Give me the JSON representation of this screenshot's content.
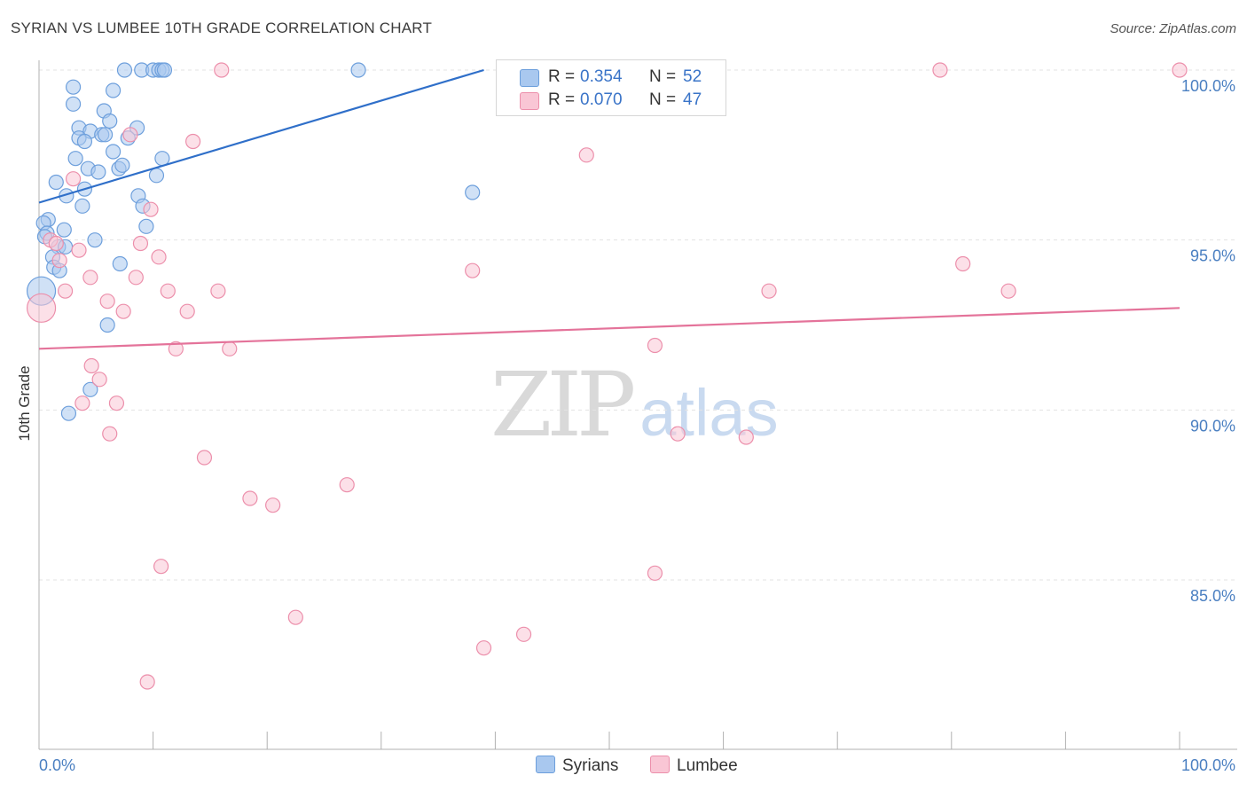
{
  "header": {
    "title": "SYRIAN VS LUMBEE 10TH GRADE CORRELATION CHART",
    "source": "Source: ZipAtlas.com"
  },
  "watermark": {
    "zip": "ZIP",
    "atlas": "atlas"
  },
  "legend": {
    "rows": [
      {
        "r_label": "R =",
        "r_value": "0.354",
        "n_label": "N =",
        "n_value": "52",
        "color": "#a9c8ef",
        "border": "#6d9fdc"
      },
      {
        "r_label": "R =",
        "r_value": "0.070",
        "n_label": "N =",
        "n_value": "47",
        "color": "#f9c6d5",
        "border": "#ec8fab"
      }
    ]
  },
  "bottom_legend": [
    {
      "label": "Syrians",
      "color": "#a9c8ef",
      "border": "#6d9fdc"
    },
    {
      "label": "Lumbee",
      "color": "#f9c6d5",
      "border": "#ec8fab"
    }
  ],
  "chart_data": {
    "type": "scatter",
    "title": "SYRIAN VS LUMBEE 10TH GRADE CORRELATION CHART",
    "xlabel": "",
    "ylabel": "10th Grade",
    "xlim": [
      0,
      100
    ],
    "ylim": [
      80.5,
      100.7
    ],
    "x_tick_labels": [
      "0.0%",
      "100.0%"
    ],
    "y_ticks": [
      85,
      90,
      95,
      100
    ],
    "y_tick_labels": [
      "85.0%",
      "90.0%",
      "95.0%",
      "100.0%"
    ],
    "grid": true,
    "legend_position": "top-center",
    "series": [
      {
        "name": "Syrians",
        "color": "#6d9fdc",
        "fill": "#a9c8ef",
        "trend": {
          "x": [
            0,
            39
          ],
          "y": [
            96.1,
            100
          ],
          "color": "#2f6fc9"
        },
        "points": [
          [
            7.5,
            100
          ],
          [
            9,
            100
          ],
          [
            10,
            100
          ],
          [
            10.5,
            100
          ],
          [
            10.8,
            100
          ],
          [
            11,
            100
          ],
          [
            28,
            100
          ],
          [
            3,
            99.5
          ],
          [
            6.5,
            99.4
          ],
          [
            3,
            99
          ],
          [
            5.7,
            98.8
          ],
          [
            6.2,
            98.5
          ],
          [
            3.5,
            98.3
          ],
          [
            8.6,
            98.3
          ],
          [
            4.5,
            98.2
          ],
          [
            5.5,
            98.1
          ],
          [
            5.8,
            98.1
          ],
          [
            3.5,
            98
          ],
          [
            4,
            97.9
          ],
          [
            7.8,
            98
          ],
          [
            6.5,
            97.6
          ],
          [
            3.2,
            97.4
          ],
          [
            10.8,
            97.4
          ],
          [
            4.3,
            97.1
          ],
          [
            7,
            97.1
          ],
          [
            7.3,
            97.2
          ],
          [
            5.2,
            97
          ],
          [
            10.3,
            96.9
          ],
          [
            1.5,
            96.7
          ],
          [
            4,
            96.5
          ],
          [
            2.4,
            96.3
          ],
          [
            8.7,
            96.3
          ],
          [
            38,
            96.4
          ],
          [
            3.8,
            96
          ],
          [
            9.1,
            96
          ],
          [
            0.8,
            95.6
          ],
          [
            0.4,
            95.5
          ],
          [
            2.2,
            95.3
          ],
          [
            0.7,
            95.2
          ],
          [
            0.5,
            95.1
          ],
          [
            9.4,
            95.4
          ],
          [
            4.9,
            95
          ],
          [
            1.7,
            94.8
          ],
          [
            2.3,
            94.8
          ],
          [
            1.2,
            94.5
          ],
          [
            7.1,
            94.3
          ],
          [
            1.3,
            94.2
          ],
          [
            1.8,
            94.1
          ],
          [
            0.2,
            93.5
          ],
          [
            6,
            92.5
          ],
          [
            4.5,
            90.6
          ],
          [
            2.6,
            89.9
          ]
        ]
      },
      {
        "name": "Lumbee",
        "color": "#ec8fab",
        "fill": "#f9c6d5",
        "trend": {
          "x": [
            0,
            100
          ],
          "y": [
            91.8,
            93.0
          ],
          "color": "#e4739a"
        },
        "points": [
          [
            16,
            100
          ],
          [
            79,
            100
          ],
          [
            100,
            100
          ],
          [
            13.5,
            97.9
          ],
          [
            8,
            98.1
          ],
          [
            48,
            97.5
          ],
          [
            3,
            96.8
          ],
          [
            9.8,
            95.9
          ],
          [
            1,
            95
          ],
          [
            1.5,
            94.9
          ],
          [
            8.9,
            94.9
          ],
          [
            3.5,
            94.7
          ],
          [
            1.8,
            94.4
          ],
          [
            10.5,
            94.5
          ],
          [
            81,
            94.3
          ],
          [
            38,
            94.1
          ],
          [
            4.5,
            93.9
          ],
          [
            8.5,
            93.9
          ],
          [
            2.3,
            93.5
          ],
          [
            11.3,
            93.5
          ],
          [
            15.7,
            93.5
          ],
          [
            64,
            93.5
          ],
          [
            85,
            93.5
          ],
          [
            6,
            93.2
          ],
          [
            0.2,
            93
          ],
          [
            7.4,
            92.9
          ],
          [
            13,
            92.9
          ],
          [
            54,
            91.9
          ],
          [
            12,
            91.8
          ],
          [
            16.7,
            91.8
          ],
          [
            4.6,
            91.3
          ],
          [
            5.3,
            90.9
          ],
          [
            3.8,
            90.2
          ],
          [
            6.8,
            90.2
          ],
          [
            6.2,
            89.3
          ],
          [
            56,
            89.3
          ],
          [
            62,
            89.2
          ],
          [
            14.5,
            88.6
          ],
          [
            27,
            87.8
          ],
          [
            18.5,
            87.4
          ],
          [
            20.5,
            87.2
          ],
          [
            10.7,
            85.4
          ],
          [
            54,
            85.2
          ],
          [
            22.5,
            83.9
          ],
          [
            42.5,
            83.4
          ],
          [
            39,
            83
          ],
          [
            9.5,
            82
          ]
        ]
      }
    ]
  }
}
